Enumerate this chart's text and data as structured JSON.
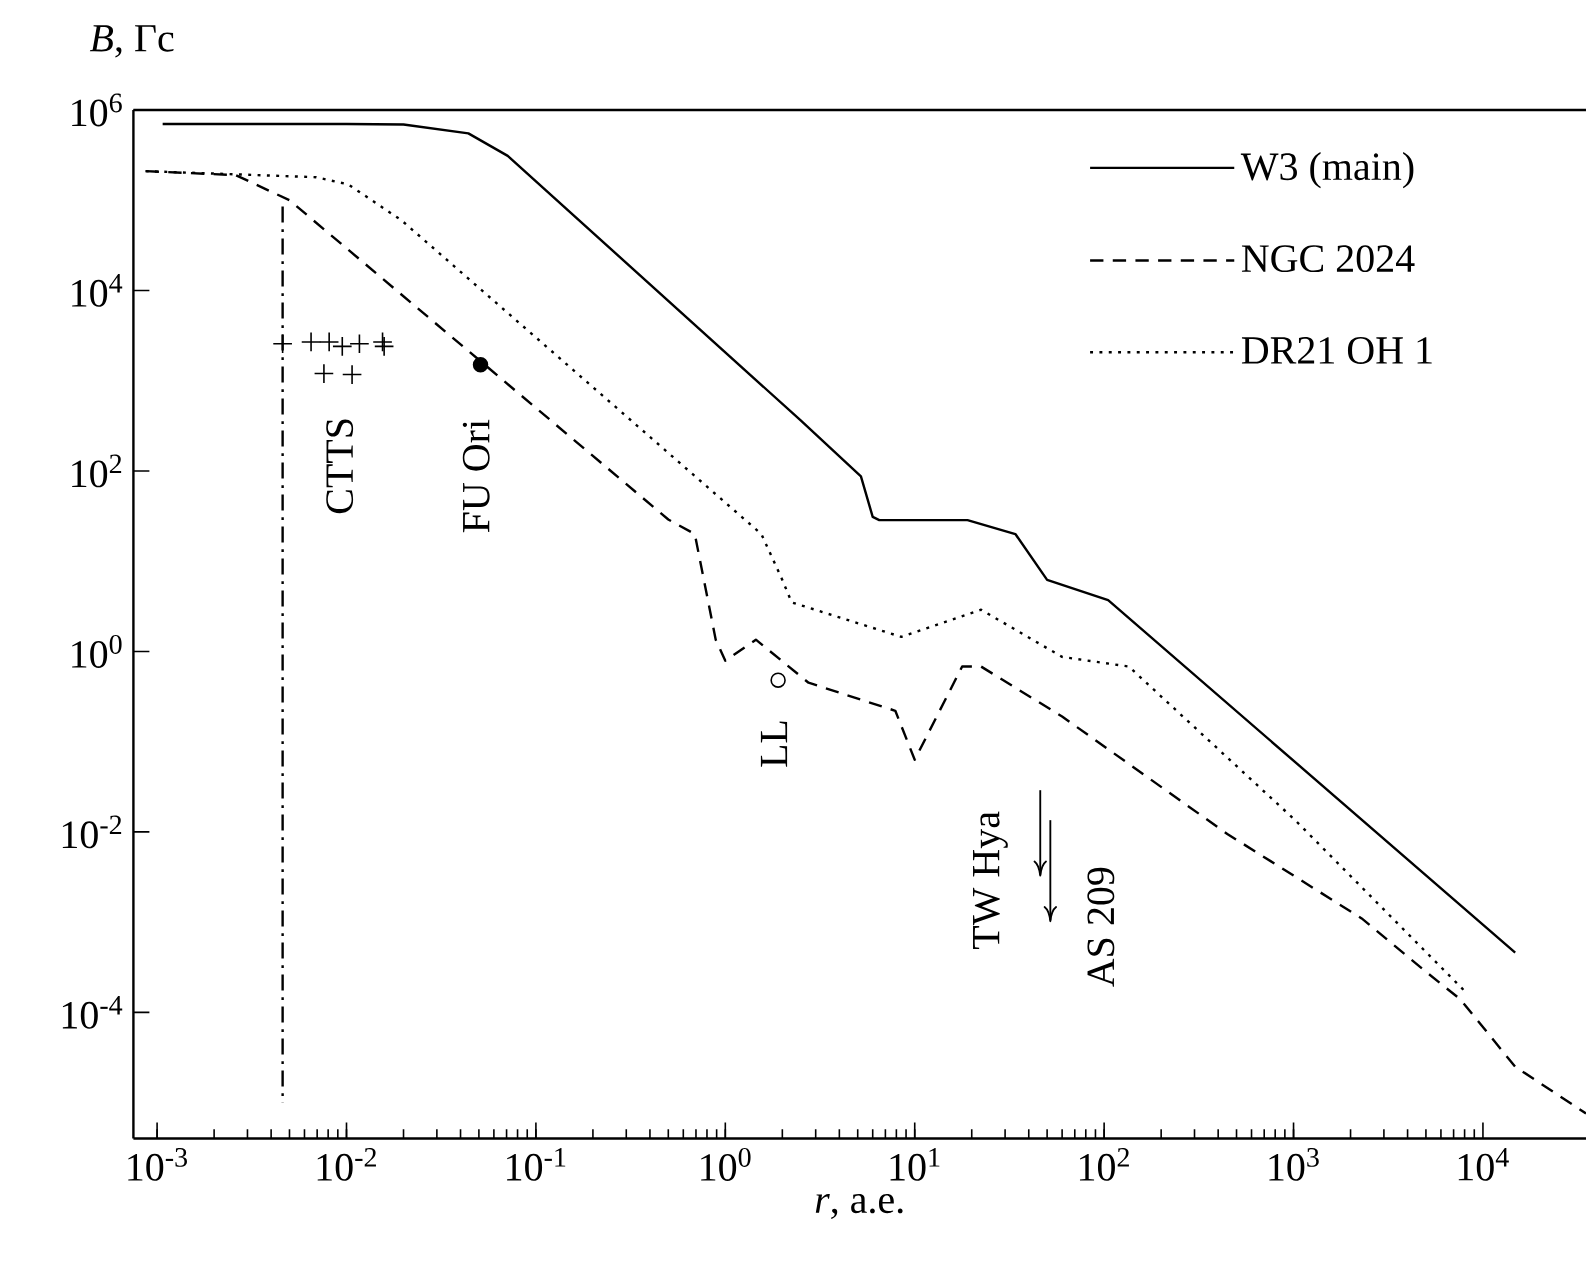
{
  "chart_data": {
    "type": "line",
    "xlabel": "*r*, a.e.",
    "ylabel": "*B*, Гс",
    "log": "xy",
    "xlim": [
      0.00075,
      35000
    ],
    "ylim": [
      4e-06,
      1000000
    ],
    "xticks": [
      {
        "value": 0.001,
        "label": "10$^{-3}$"
      },
      {
        "value": 0.01,
        "label": "10$^{-2}$"
      },
      {
        "value": 0.1,
        "label": "10$^{-1}$"
      },
      {
        "value": 1,
        "label": "10$^{0}$"
      },
      {
        "value": 10,
        "label": "10$^{1}$"
      },
      {
        "value": 100,
        "label": "10$^{2}$"
      },
      {
        "value": 1000,
        "label": "10$^{3}$"
      },
      {
        "value": 10000,
        "label": "10$^{4}$"
      }
    ],
    "yticks": [
      {
        "value": 0.0001,
        "label": "10$^{-4}$"
      },
      {
        "value": 0.01,
        "label": "10$^{-2}$"
      },
      {
        "value": 1,
        "label": "10$^{0}$"
      },
      {
        "value": 100,
        "label": "10$^{2}$"
      },
      {
        "value": 10000,
        "label": "10$^{4}$"
      },
      {
        "value": 1000000,
        "label": "10$^{6}$"
      }
    ],
    "legend": "top right",
    "series": [
      {
        "name": "W3 (main)",
        "line_style": "solid",
        "color": "#000000",
        "x": [
          0.00107,
          0.01,
          0.02,
          0.044,
          0.071,
          2.5,
          5.2,
          6.0,
          6.5,
          19,
          34,
          50,
          105,
          14800
        ],
        "values": [
          700000,
          700000,
          690000,
          550000,
          310000,
          363,
          87,
          31,
          28.5,
          28.5,
          20,
          6.2,
          3.7,
          0.00046
        ]
      },
      {
        "name": "NGC 2024",
        "line_style": "dashed",
        "color": "#000000",
        "x": [
          0.00087,
          0.0026,
          0.005,
          0.5,
          0.69,
          0.89,
          1.0,
          1.45,
          2.75,
          7.9,
          10,
          17.8,
          22.4,
          60,
          447,
          2290,
          5130,
          7590,
          14800,
          35000
        ],
        "values": [
          210000,
          190000,
          100000,
          29,
          20,
          1.35,
          0.79,
          1.35,
          0.45,
          0.22,
          0.063,
          0.68,
          0.68,
          0.19,
          0.0095,
          0.0011,
          0.00027,
          0.00014,
          2.5e-05,
          7.6e-06
        ]
      },
      {
        "name": "DR21 OH 1",
        "line_style": "dotted",
        "color": "#000000",
        "x": [
          0.00087,
          0.0069,
          0.0102,
          0.0195,
          1.55,
          2.0,
          2.24,
          8.5,
          22.4,
          60,
          135,
          1020,
          8300
        ],
        "values": [
          210000,
          180000,
          150000,
          60000,
          20,
          6.2,
          3.5,
          1.45,
          2.9,
          0.87,
          0.68,
          0.0135,
          0.00016
        ]
      },
      {
        "line_style": "dashdot",
        "color": "#000000",
        "x": [
          0.0046,
          0.0046
        ],
        "values": [
          85000,
          1e-05
        ]
      },
      {
        "type": "scatter",
        "marker": "cross",
        "color": "#000000",
        "x": [
          0.0046,
          0.0065,
          0.0081,
          0.0095,
          0.0117,
          0.0155,
          0.0158,
          0.0076,
          0.0107
        ],
        "values": [
          2570,
          2690,
          2690,
          2400,
          2570,
          2690,
          2400,
          1200,
          1170
        ]
      },
      {
        "type": "scatter",
        "marker": "circle",
        "color": "#000000",
        "x": [
          0.051
        ],
        "values": [
          1500
        ]
      },
      {
        "type": "scatter",
        "marker": "circle",
        "color": "#ffffff",
        "x": [
          1.9
        ],
        "values": [
          0.48
        ]
      },
      {
        "type": "scatter",
        "color": "#000000",
        "x": [
          46,
          52
        ],
        "values": [
          0.0039,
          0.0012
        ],
        "errors": [
          [
            0.0032,
            0.029
          ],
          [
            0.001,
            0.0135
          ]
        ]
      }
    ],
    "annotations": [
      "CTTS",
      "FU Ori",
      "LL",
      "TW Hya",
      "AS 209"
    ]
  }
}
